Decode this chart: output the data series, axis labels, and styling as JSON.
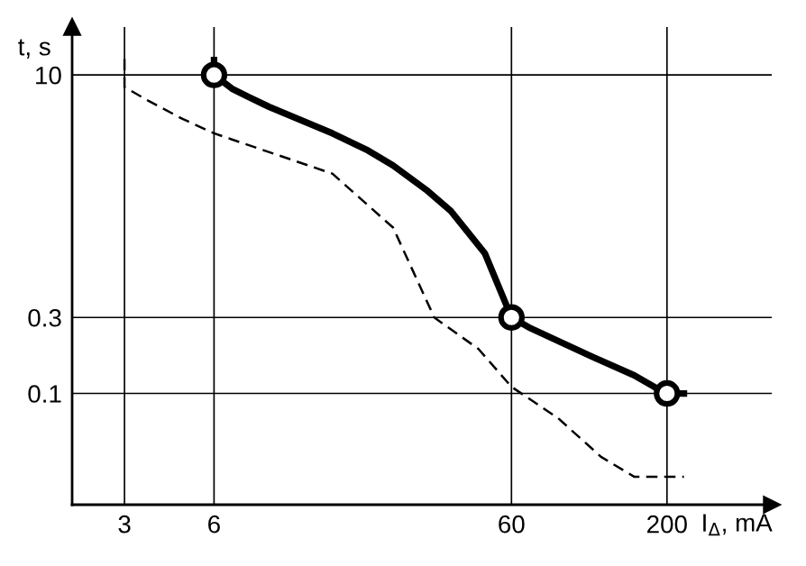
{
  "chart_data": {
    "type": "line",
    "xlabel": "I$_{Δ}$, mA",
    "ylabel": "t, s",
    "log": "xy",
    "xlim": [
      2,
      450
    ],
    "ylim": [
      0.02,
      20
    ],
    "xticks": [
      3,
      6,
      60,
      200
    ],
    "yticks": [
      0.1,
      0.3,
      10
    ],
    "grid": true,
    "legend": false,
    "series": [
      {
        "color": "#000000",
        "line_style": "solid",
        "marker": "none",
        "x": [
          6,
          6,
          6.9,
          7.8,
          9.2,
          15,
          19.5,
          24,
          31,
          37.5,
          48.8,
          60,
          68.6,
          112,
          155,
          181,
          200,
          228
        ],
        "values": [
          12.4,
          10,
          8.2,
          7.3,
          6.3,
          4.3,
          3.4,
          2.7,
          1.9,
          1.4,
          0.76,
          0.3,
          0.26,
          0.17,
          0.13,
          0.11,
          0.1,
          0.1
        ]
      },
      {
        "color": "#000000",
        "line_style": "dashed",
        "marker": "none",
        "x": [
          3,
          3,
          3.6,
          4.7,
          6,
          15,
          24,
          33,
          46.5,
          60,
          86,
          120,
          155,
          200,
          228
        ],
        "values": [
          12.6,
          8.4,
          6.9,
          5.3,
          4.3,
          2.4,
          1.1,
          0.3,
          0.19,
          0.11,
          0.07,
          0.04,
          0.03,
          0.03,
          0.03
        ]
      },
      {
        "type": "scatter",
        "color": "#000000",
        "marker": "circle",
        "x": [
          6,
          60,
          200
        ],
        "values": [
          10,
          0.3,
          0.1
        ]
      }
    ]
  }
}
